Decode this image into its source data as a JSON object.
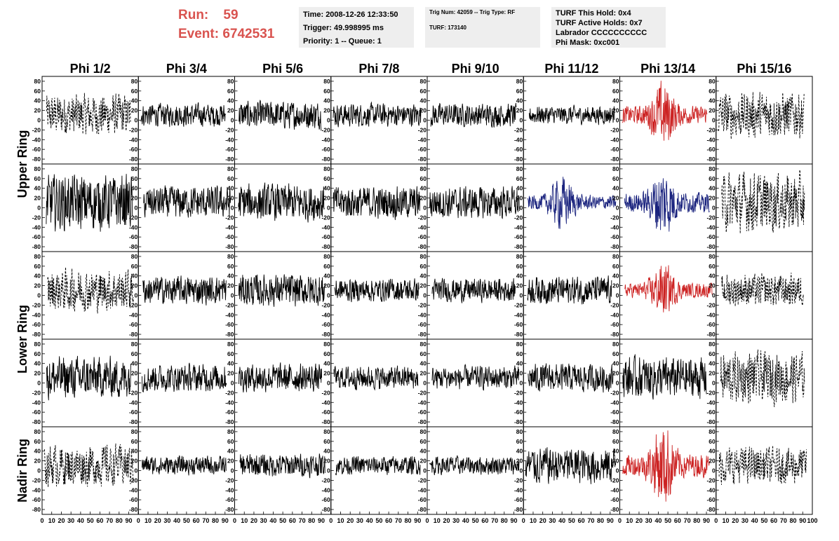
{
  "header": {
    "run_label": "Run:",
    "run_value": "59",
    "event_label": "Event:",
    "event_value": "6742531"
  },
  "info_boxes": [
    {
      "lines": [
        "Time: 2008-12-26 12:33:50",
        "Trigger: 49.998995 ms",
        "Priority: 1 -- Queue: 1"
      ]
    },
    {
      "lines": [
        "Trig Num: 42059 -- Trig Type: RF",
        "",
        "TURF: 173140"
      ]
    },
    {
      "lines": [
        "TURF This Hold: 0x4",
        "TURF Active Holds: 0x7",
        "Labrador CCCCCCCCCC",
        "Phi Mask: 0xc001"
      ]
    }
  ],
  "chart_data": {
    "type": "line",
    "columns": [
      "Phi 1/2",
      "Phi 3/4",
      "Phi 5/6",
      "Phi 7/8",
      "Phi 9/10",
      "Phi 11/12",
      "Phi 13/14",
      "Phi 15/16"
    ],
    "ring_labels": [
      {
        "label": "Upper Ring"
      },
      {
        "label": "Lower Ring"
      },
      {
        "label": "Nadir Ring"
      }
    ],
    "ylim": [
      -90,
      90
    ],
    "xlim": [
      0,
      100
    ],
    "y_ticks": [
      -80,
      -60,
      -40,
      -20,
      0,
      20,
      40,
      60,
      80
    ],
    "x_ticks": [
      0,
      10,
      20,
      30,
      40,
      50,
      60,
      70,
      80,
      90,
      100
    ],
    "colors": {
      "normal": "#000000",
      "red": "#cc2222",
      "blue": "#1a237e"
    },
    "panel_styles": [
      [
        "dash",
        "solid",
        "solid",
        "solid",
        "solid",
        "solid",
        "red",
        "dash"
      ],
      [
        "solid",
        "solid",
        "solid",
        "solid",
        "solid",
        "blue",
        "blue",
        "dash"
      ],
      [
        "dash",
        "solid",
        "solid",
        "solid",
        "solid",
        "solid",
        "red",
        "dash"
      ],
      [
        "solid",
        "solid",
        "solid",
        "solid",
        "solid",
        "solid",
        "solid",
        "dash"
      ],
      [
        "dash",
        "solid",
        "solid",
        "solid",
        "solid",
        "solid",
        "red",
        "dash"
      ]
    ],
    "panel_amplitudes": [
      [
        45,
        25,
        30,
        25,
        25,
        20,
        55,
        50
      ],
      [
        60,
        35,
        40,
        35,
        35,
        45,
        60,
        65
      ],
      [
        45,
        30,
        35,
        25,
        25,
        30,
        45,
        35
      ],
      [
        45,
        30,
        30,
        25,
        25,
        30,
        45,
        55
      ],
      [
        45,
        20,
        25,
        20,
        20,
        40,
        70,
        40
      ]
    ],
    "burst_centers": [
      [
        null,
        null,
        null,
        null,
        null,
        null,
        45,
        null
      ],
      [
        null,
        null,
        null,
        null,
        null,
        40,
        45,
        null
      ],
      [
        null,
        null,
        null,
        null,
        null,
        null,
        45,
        null
      ],
      [
        null,
        null,
        null,
        null,
        null,
        null,
        null,
        null
      ],
      [
        null,
        null,
        null,
        null,
        null,
        null,
        45,
        null
      ]
    ]
  }
}
